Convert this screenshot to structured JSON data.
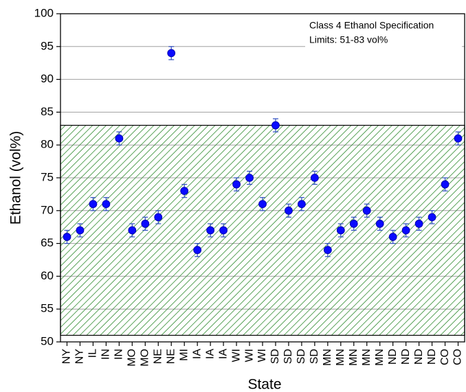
{
  "chart_data": {
    "type": "scatter",
    "x_label": "State",
    "y_label": "Ethanol (vol%)",
    "annotation": [
      "Class 4 Ethanol Specification",
      "Limits: 51-83 vol%"
    ],
    "spec_range": [
      51,
      83
    ],
    "spec_color": "#2e8b2e",
    "categories": [
      "NY",
      "NY",
      "IL",
      "IN",
      "IN",
      "MO",
      "MO",
      "NE",
      "NE",
      "MI",
      "IA",
      "IA",
      "IA",
      "WI",
      "WI",
      "WI",
      "SD",
      "SD",
      "SD",
      "SD",
      "MN",
      "MN",
      "MN",
      "MN",
      "MN",
      "ND",
      "ND",
      "ND",
      "ND",
      "CO",
      "CO"
    ],
    "values": [
      66,
      67,
      71,
      71,
      81,
      67,
      68,
      69,
      94,
      73,
      64,
      67,
      67,
      74,
      75,
      71,
      83,
      70,
      71,
      75,
      64,
      67,
      68,
      70,
      68,
      66,
      67,
      68,
      69,
      74,
      81
    ],
    "errors": [
      1,
      1,
      1,
      1,
      1,
      1,
      1,
      1,
      1,
      1,
      1,
      1,
      1,
      1,
      1,
      1,
      1,
      1,
      1,
      1,
      1,
      1,
      1,
      1,
      1,
      1,
      1,
      1,
      1,
      1,
      1
    ],
    "color": "#0a0aff",
    "error_color": "#2f4fc0",
    "ylim": [
      50,
      100
    ],
    "yticks": [
      50,
      55,
      60,
      65,
      70,
      75,
      80,
      85,
      90,
      95,
      100
    ],
    "grid": true
  }
}
